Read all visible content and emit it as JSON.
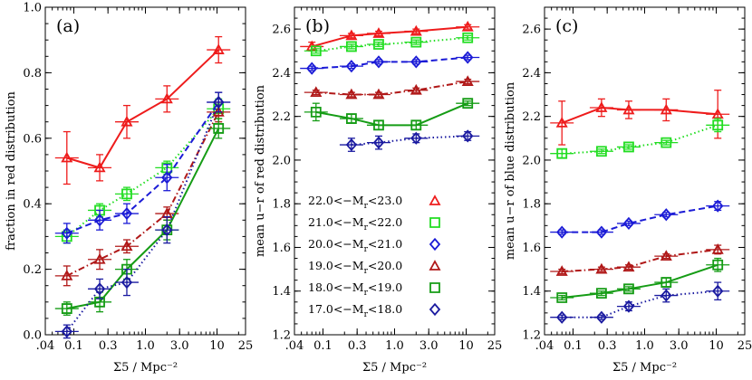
{
  "colors": {
    "red": "#ee1c1c",
    "green": "#22dd22",
    "blue": "#1b1bd6",
    "darkred": "#b01818",
    "darkgreen": "#159c15",
    "navy": "#1a1aa0"
  },
  "chart_data": [
    {
      "type": "line",
      "panel_label": "(a)",
      "xlabel": "Σ5 / Mpc⁻²",
      "ylabel": "fraction in red distribution",
      "xscale": "log",
      "xlim": [
        0.04,
        25
      ],
      "ylim": [
        0.0,
        1.0
      ],
      "xticks": [
        0.04,
        0.1,
        0.3,
        1.0,
        3.0,
        10,
        25
      ],
      "xtick_labels": [
        ".04",
        "0.1",
        "0.3",
        "1.0",
        "3.0",
        "10",
        "25"
      ],
      "yticks": [
        0.0,
        0.2,
        0.4,
        0.6,
        0.8,
        1.0
      ],
      "ytick_labels": [
        "0.0",
        "0.2",
        "0.4",
        "0.6",
        "0.8",
        "1.0"
      ],
      "series": [
        {
          "name": "22.0<−Mr<23.0",
          "marker": "triangle",
          "color": "red",
          "style": "solid",
          "x": [
            0.08,
            0.23,
            0.55,
            2.0,
            10.5
          ],
          "y": [
            0.54,
            0.51,
            0.65,
            0.72,
            0.87
          ],
          "yerr": [
            0.08,
            0.04,
            0.05,
            0.04,
            0.04
          ]
        },
        {
          "name": "21.0<−Mr<22.0",
          "marker": "square",
          "color": "green",
          "style": "dotted",
          "x": [
            0.08,
            0.23,
            0.55,
            2.0,
            10.5
          ],
          "y": [
            0.3,
            0.38,
            0.43,
            0.51,
            0.69
          ],
          "yerr": [
            0.02,
            0.02,
            0.02,
            0.02,
            0.03
          ]
        },
        {
          "name": "20.0<−Mr<21.0",
          "marker": "diamond",
          "color": "blue",
          "style": "dashed",
          "x": [
            0.08,
            0.23,
            0.55,
            2.0,
            10.5
          ],
          "y": [
            0.31,
            0.35,
            0.37,
            0.48,
            0.71
          ],
          "yerr": [
            0.03,
            0.03,
            0.03,
            0.04,
            0.03
          ]
        },
        {
          "name": "19.0<−Mr<20.0",
          "marker": "triangle",
          "color": "darkred",
          "style": "dashdot",
          "x": [
            0.08,
            0.23,
            0.55,
            2.0,
            10.5
          ],
          "y": [
            0.18,
            0.23,
            0.27,
            0.37,
            0.68
          ],
          "yerr": [
            0.03,
            0.03,
            0.02,
            0.02,
            0.03
          ]
        },
        {
          "name": "18.0<−Mr<19.0",
          "marker": "square",
          "color": "darkgreen",
          "style": "solid",
          "x": [
            0.08,
            0.23,
            0.55,
            2.0,
            10.5
          ],
          "y": [
            0.08,
            0.1,
            0.2,
            0.32,
            0.63
          ],
          "yerr": [
            0.02,
            0.03,
            0.03,
            0.03,
            0.03
          ]
        },
        {
          "name": "17.0<−Mr<18.0",
          "marker": "diamond",
          "color": "navy",
          "style": "dotted",
          "x": [
            0.08,
            0.23,
            0.55,
            2.0,
            10.5
          ],
          "y": [
            0.01,
            0.14,
            0.16,
            0.32,
            0.71
          ],
          "yerr": [
            0.02,
            0.03,
            0.04,
            0.04,
            0.03
          ]
        }
      ]
    },
    {
      "type": "line",
      "panel_label": "(b)",
      "xlabel": "Σ5 / Mpc⁻²",
      "ylabel": "mean u−r of red distribution",
      "xscale": "log",
      "xlim": [
        0.04,
        25
      ],
      "ylim": [
        1.2,
        2.7
      ],
      "xticks": [
        0.04,
        0.1,
        0.3,
        1.0,
        3.0,
        10,
        25
      ],
      "xtick_labels": [
        ".04",
        "0.1",
        "0.3",
        "1.0",
        "3.0",
        "10",
        "25"
      ],
      "yticks": [
        1.2,
        1.4,
        1.6,
        1.8,
        2.0,
        2.2,
        2.4,
        2.6
      ],
      "ytick_labels": [
        "1.2",
        "1.4",
        "1.6",
        "1.8",
        "2.0",
        "2.2",
        "2.4",
        "2.6"
      ],
      "series": [
        {
          "name": "22.0<−Mr<23.0",
          "marker": "triangle",
          "color": "red",
          "style": "solid",
          "x": [
            0.07,
            0.25,
            0.6,
            2.0,
            10.5
          ],
          "y": [
            2.52,
            2.57,
            2.58,
            2.59,
            2.61
          ],
          "yerr": [
            0.02,
            0.01,
            0.01,
            0.01,
            0.01
          ]
        },
        {
          "name": "21.0<−Mr<22.0",
          "marker": "square",
          "color": "green",
          "style": "dotted",
          "x": [
            0.08,
            0.25,
            0.6,
            2.0,
            10.5
          ],
          "y": [
            2.5,
            2.52,
            2.53,
            2.54,
            2.56
          ],
          "yerr": [
            0.01,
            0.01,
            0.01,
            0.01,
            0.01
          ]
        },
        {
          "name": "20.0<−Mr<21.0",
          "marker": "diamond",
          "color": "blue",
          "style": "dashed",
          "x": [
            0.07,
            0.25,
            0.6,
            2.0,
            10.5
          ],
          "y": [
            2.42,
            2.43,
            2.45,
            2.45,
            2.47
          ],
          "yerr": [
            0.01,
            0.01,
            0.01,
            0.01,
            0.01
          ]
        },
        {
          "name": "19.0<−Mr<20.0",
          "marker": "triangle",
          "color": "darkred",
          "style": "dashdot",
          "x": [
            0.08,
            0.25,
            0.6,
            2.0,
            10.5
          ],
          "y": [
            2.31,
            2.3,
            2.3,
            2.32,
            2.36
          ],
          "yerr": [
            0.01,
            0.01,
            0.01,
            0.01,
            0.01
          ]
        },
        {
          "name": "18.0<−Mr<19.0",
          "marker": "square",
          "color": "darkgreen",
          "style": "solid",
          "x": [
            0.08,
            0.25,
            0.6,
            2.0,
            10.5
          ],
          "y": [
            2.22,
            2.19,
            2.16,
            2.16,
            2.26
          ],
          "yerr": [
            0.04,
            0.02,
            0.02,
            0.02,
            0.01
          ]
        },
        {
          "name": "17.0<−Mr<18.0",
          "marker": "diamond",
          "color": "navy",
          "style": "dotted",
          "x": [
            0.25,
            0.6,
            2.0,
            10.5
          ],
          "y": [
            2.07,
            2.08,
            2.1,
            2.11
          ],
          "yerr": [
            0.03,
            0.03,
            0.02,
            0.02
          ]
        }
      ],
      "legend": {
        "placement": "center-right",
        "entries": [
          {
            "label": "22.0<−M",
            "sub": "r",
            "suffix": "<23.0",
            "marker": "triangle",
            "color": "red"
          },
          {
            "label": "21.0<−M",
            "sub": "r",
            "suffix": "<22.0",
            "marker": "square",
            "color": "green"
          },
          {
            "label": "20.0<−M",
            "sub": "r",
            "suffix": "<21.0",
            "marker": "diamond",
            "color": "blue"
          },
          {
            "label": "19.0<−M",
            "sub": "r",
            "suffix": "<20.0",
            "marker": "triangle",
            "color": "darkred"
          },
          {
            "label": "18.0<−M",
            "sub": "r",
            "suffix": "<19.0",
            "marker": "square",
            "color": "darkgreen"
          },
          {
            "label": "17.0<−M",
            "sub": "r",
            "suffix": "<18.0",
            "marker": "diamond",
            "color": "navy"
          }
        ]
      }
    },
    {
      "type": "line",
      "panel_label": "(c)",
      "xlabel": "Σ5 / Mpc⁻²",
      "ylabel": "mean u−r of blue distribution",
      "xscale": "log",
      "xlim": [
        0.04,
        25
      ],
      "ylim": [
        1.2,
        2.7
      ],
      "xticks": [
        0.04,
        0.1,
        0.3,
        1.0,
        3.0,
        10,
        25
      ],
      "xtick_labels": [
        ".04",
        "0.1",
        "0.3",
        "1.0",
        "3.0",
        "10",
        "25"
      ],
      "yticks": [
        1.2,
        1.4,
        1.6,
        1.8,
        2.0,
        2.2,
        2.4,
        2.6
      ],
      "ytick_labels": [
        "1.2",
        "1.4",
        "1.6",
        "1.8",
        "2.0",
        "2.2",
        "2.4",
        "2.6"
      ],
      "series": [
        {
          "name": "22.0<−Mr<23.0",
          "marker": "triangle",
          "color": "red",
          "style": "solid",
          "x": [
            0.07,
            0.25,
            0.6,
            2.0,
            10.5
          ],
          "y": [
            2.17,
            2.24,
            2.23,
            2.23,
            2.21
          ],
          "yerr": [
            0.1,
            0.04,
            0.04,
            0.05,
            0.11
          ]
        },
        {
          "name": "21.0<−Mr<22.0",
          "marker": "square",
          "color": "green",
          "style": "dotted",
          "x": [
            0.07,
            0.25,
            0.6,
            2.0,
            10.5
          ],
          "y": [
            2.03,
            2.04,
            2.06,
            2.08,
            2.16
          ],
          "yerr": [
            0.02,
            0.01,
            0.01,
            0.01,
            0.03
          ]
        },
        {
          "name": "20.0<−Mr<21.0",
          "marker": "diamond",
          "color": "blue",
          "style": "dashed",
          "x": [
            0.07,
            0.25,
            0.6,
            2.0,
            10.5
          ],
          "y": [
            1.67,
            1.67,
            1.71,
            1.75,
            1.79
          ],
          "yerr": [
            0.01,
            0.01,
            0.01,
            0.01,
            0.02
          ]
        },
        {
          "name": "19.0<−Mr<20.0",
          "marker": "triangle",
          "color": "darkred",
          "style": "dashdot",
          "x": [
            0.07,
            0.25,
            0.6,
            2.0,
            10.5
          ],
          "y": [
            1.49,
            1.5,
            1.51,
            1.56,
            1.59
          ],
          "yerr": [
            0.01,
            0.01,
            0.01,
            0.01,
            0.02
          ]
        },
        {
          "name": "18.0<−Mr<19.0",
          "marker": "square",
          "color": "darkgreen",
          "style": "solid",
          "x": [
            0.07,
            0.25,
            0.6,
            2.0,
            10.5
          ],
          "y": [
            1.37,
            1.39,
            1.41,
            1.44,
            1.52
          ],
          "yerr": [
            0.01,
            0.01,
            0.01,
            0.02,
            0.03
          ]
        },
        {
          "name": "17.0<−Mr<18.0",
          "marker": "diamond",
          "color": "navy",
          "style": "dotted",
          "x": [
            0.07,
            0.25,
            0.6,
            2.0,
            10.5
          ],
          "y": [
            1.28,
            1.28,
            1.33,
            1.38,
            1.4
          ],
          "yerr": [
            0.01,
            0.01,
            0.02,
            0.03,
            0.04
          ]
        }
      ]
    }
  ]
}
